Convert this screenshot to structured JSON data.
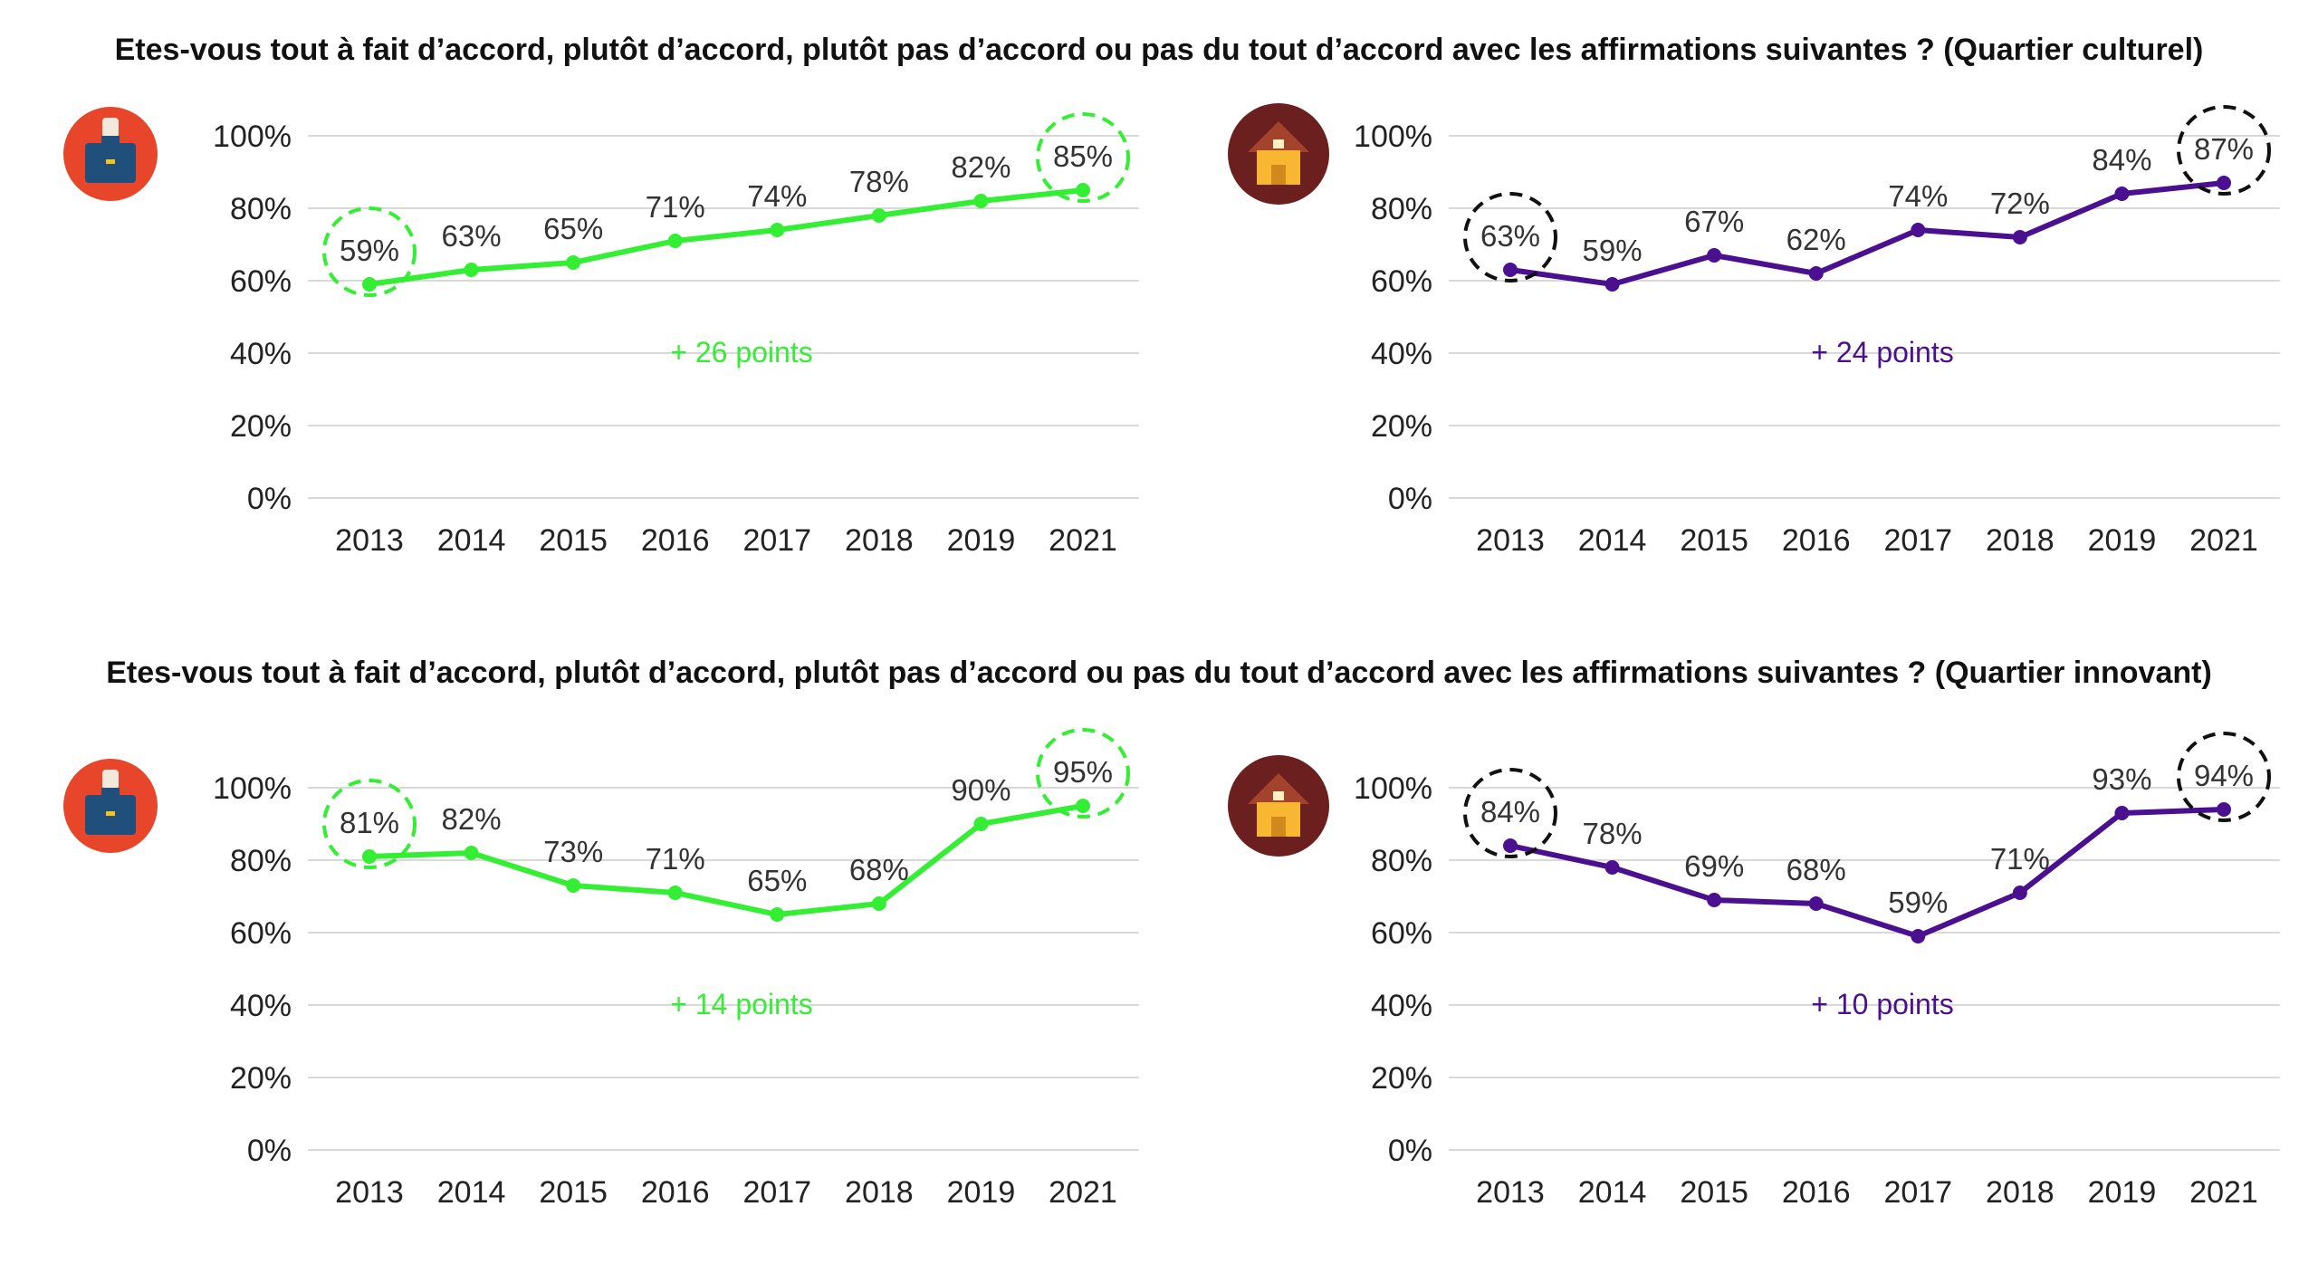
{
  "titles": {
    "top": "Etes-vous tout à fait d’accord, plutôt d’accord, plutôt pas d’accord ou pas du tout d’accord avec les affirmations suivantes ? (Quartier culturel)",
    "bottom": "Etes-vous tout à fait d’accord, plutôt d’accord, plutôt pas d’accord ou pas du tout d’accord avec les affirmations suivantes ? (Quartier innovant)"
  },
  "colors": {
    "green": "#33ee33",
    "purple": "#4a108f",
    "grid": "#d9d9d9",
    "icon_orange": "#e8462a",
    "icon_brown": "#6b1f1f",
    "highlight_dark": "#111111"
  },
  "icons": {
    "briefcase": "briefcase-icon",
    "house": "house-icon"
  },
  "chart_data": [
    {
      "type": "line",
      "icon": "briefcase-icon",
      "color": "#33ee33",
      "categories": [
        "2013",
        "2014",
        "2015",
        "2016",
        "2017",
        "2018",
        "2019",
        "2021"
      ],
      "values": [
        59,
        63,
        65,
        71,
        74,
        78,
        82,
        85
      ],
      "data_labels": [
        "59%",
        "63%",
        "65%",
        "71%",
        "74%",
        "78%",
        "82%",
        "85%"
      ],
      "yticks": [
        "0%",
        "20%",
        "40%",
        "60%",
        "80%",
        "100%"
      ],
      "ylim": [
        0,
        100
      ],
      "grid": true,
      "annotation": "+ 26 points",
      "highlighted": [
        "2013",
        "2021"
      ]
    },
    {
      "type": "line",
      "icon": "house-icon",
      "color": "#4a108f",
      "categories": [
        "2013",
        "2014",
        "2015",
        "2016",
        "2017",
        "2018",
        "2019",
        "2021"
      ],
      "values": [
        63,
        59,
        67,
        62,
        74,
        72,
        84,
        87
      ],
      "data_labels": [
        "63%",
        "59%",
        "67%",
        "62%",
        "74%",
        "72%",
        "84%",
        "87%"
      ],
      "yticks": [
        "0%",
        "20%",
        "40%",
        "60%",
        "80%",
        "100%"
      ],
      "ylim": [
        0,
        100
      ],
      "grid": true,
      "annotation": "+ 24 points",
      "highlighted": [
        "2013",
        "2021"
      ]
    },
    {
      "type": "line",
      "icon": "briefcase-icon",
      "color": "#33ee33",
      "categories": [
        "2013",
        "2014",
        "2015",
        "2016",
        "2017",
        "2018",
        "2019",
        "2021"
      ],
      "values": [
        81,
        82,
        73,
        71,
        65,
        68,
        90,
        95
      ],
      "data_labels": [
        "81%",
        "82%",
        "73%",
        "71%",
        "65%",
        "68%",
        "90%",
        "95%"
      ],
      "yticks": [
        "0%",
        "20%",
        "40%",
        "60%",
        "80%",
        "100%"
      ],
      "ylim": [
        0,
        100
      ],
      "grid": true,
      "annotation": "+ 14 points",
      "highlighted": [
        "2013",
        "2021"
      ]
    },
    {
      "type": "line",
      "icon": "house-icon",
      "color": "#4a108f",
      "categories": [
        "2013",
        "2014",
        "2015",
        "2016",
        "2017",
        "2018",
        "2019",
        "2021"
      ],
      "values": [
        84,
        78,
        69,
        68,
        59,
        71,
        93,
        94
      ],
      "data_labels": [
        "84%",
        "78%",
        "69%",
        "68%",
        "59%",
        "71%",
        "93%",
        "94%"
      ],
      "yticks": [
        "0%",
        "20%",
        "40%",
        "60%",
        "80%",
        "100%"
      ],
      "ylim": [
        0,
        100
      ],
      "grid": true,
      "annotation": "+ 10 points",
      "highlighted": [
        "2013",
        "2021"
      ]
    }
  ]
}
